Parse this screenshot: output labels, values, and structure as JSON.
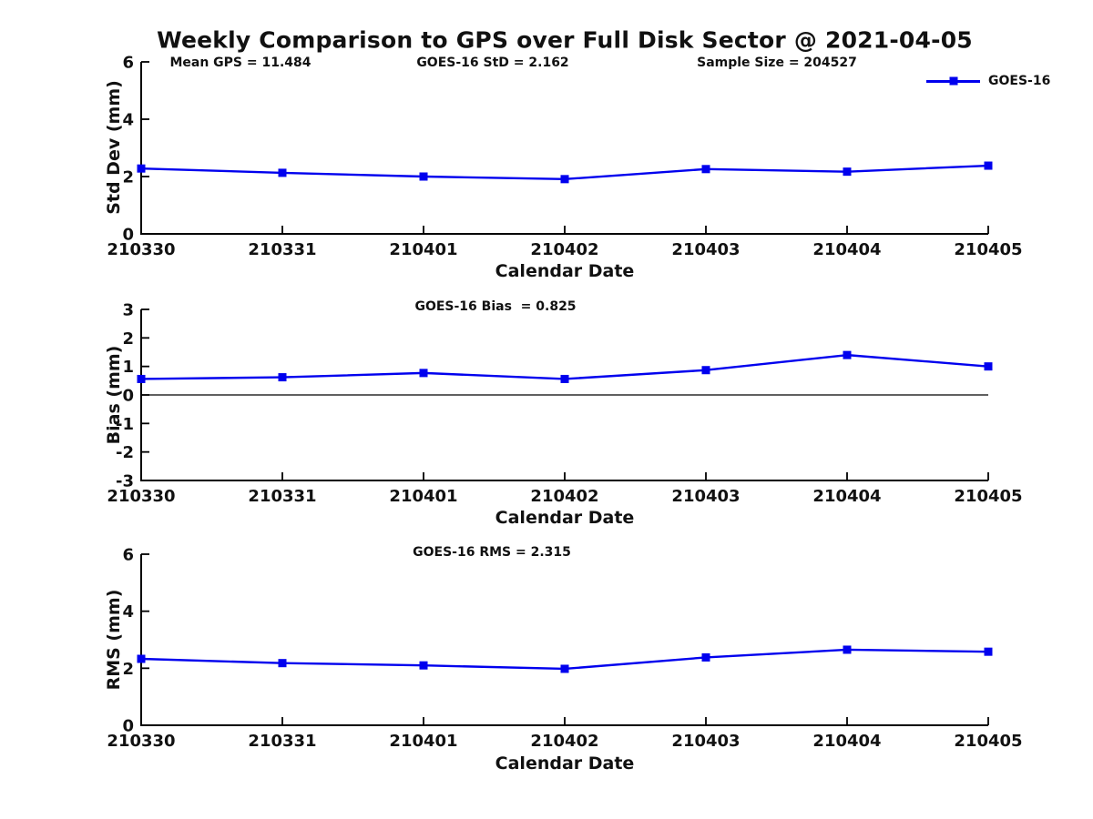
{
  "title": "Weekly Comparison to GPS over Full Disk Sector @ 2021-04-05",
  "colors": {
    "series": "#0000EE",
    "axis": "#000000"
  },
  "legend": {
    "label": "GOES-16",
    "position": "top-right"
  },
  "chart_data": [
    {
      "type": "line",
      "name": "std-dev",
      "categories": [
        "210330",
        "210331",
        "210401",
        "210402",
        "210403",
        "210404",
        "210405"
      ],
      "series": [
        {
          "name": "GOES-16",
          "values": [
            2.28,
            2.13,
            2.0,
            1.91,
            2.26,
            2.17,
            2.38
          ]
        }
      ],
      "annotations": [
        {
          "text": "Mean GPS = 11.484"
        },
        {
          "text": "GOES-16 StD = 2.162"
        },
        {
          "text": "Sample Size = 204527"
        }
      ],
      "xlabel": "Calendar Date",
      "ylabel": "Std Dev (mm)",
      "ylim": [
        0,
        6
      ],
      "yticks": [
        0,
        2,
        4,
        6
      ],
      "grid": false,
      "marker": "square"
    },
    {
      "type": "line",
      "name": "bias",
      "categories": [
        "210330",
        "210331",
        "210401",
        "210402",
        "210403",
        "210404",
        "210405"
      ],
      "series": [
        {
          "name": "GOES-16",
          "values": [
            0.56,
            0.62,
            0.77,
            0.56,
            0.87,
            1.4,
            1.0
          ]
        }
      ],
      "annotations": [
        {
          "text": "GOES-16 Bias  = 0.825"
        }
      ],
      "xlabel": "Calendar Date",
      "ylabel": "Bias (mm)",
      "ylim": [
        -3,
        3
      ],
      "yticks": [
        -3,
        -2,
        -1,
        0,
        1,
        2,
        3
      ],
      "zero_line": true,
      "grid": false,
      "marker": "square"
    },
    {
      "type": "line",
      "name": "rms",
      "categories": [
        "210330",
        "210331",
        "210401",
        "210402",
        "210403",
        "210404",
        "210405"
      ],
      "series": [
        {
          "name": "GOES-16",
          "values": [
            2.33,
            2.18,
            2.1,
            1.98,
            2.38,
            2.65,
            2.58
          ]
        }
      ],
      "annotations": [
        {
          "text": "GOES-16 RMS = 2.315"
        }
      ],
      "xlabel": "Calendar Date",
      "ylabel": "RMS (mm)",
      "ylim": [
        0,
        6
      ],
      "yticks": [
        0,
        2,
        4,
        6
      ],
      "grid": false,
      "marker": "square"
    }
  ]
}
